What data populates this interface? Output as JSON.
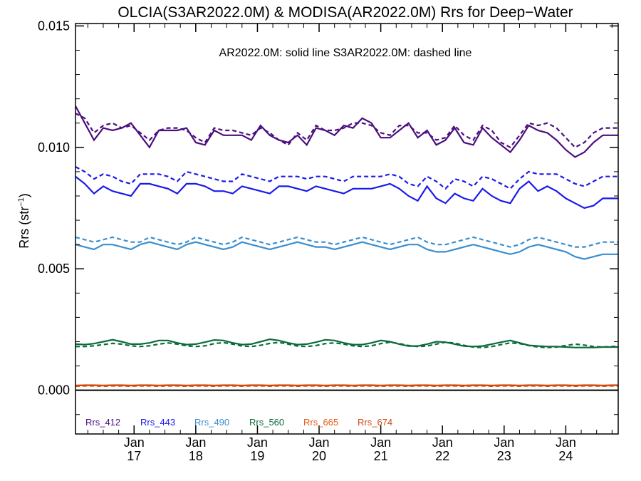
{
  "chart_data": {
    "type": "line",
    "title": "OLCIA(S3AR2022.0M) & MODISA(AR2022.0M)  Rrs for Deep−Water",
    "subtitle": "AR2022.0M: solid line   S3AR2022.0M: dashed line",
    "ylabel_main": "Rrs (str",
    "ylabel_sup": "−1",
    "ylabel_end": ")",
    "ylim": [
      -0.0018,
      0.0151
    ],
    "xlim": [
      2016.05,
      2024.85
    ],
    "yticks": [
      {
        "value": 0.0,
        "label": "0.000"
      },
      {
        "value": 0.005,
        "label": "0.005"
      },
      {
        "value": 0.01,
        "label": "0.010"
      },
      {
        "value": 0.015,
        "label": "0.015"
      }
    ],
    "xticks": [
      {
        "value": 2017.0,
        "month": "Jan",
        "year": "17"
      },
      {
        "value": 2018.0,
        "month": "Jan",
        "year": "18"
      },
      {
        "value": 2019.0,
        "month": "Jan",
        "year": "19"
      },
      {
        "value": 2020.0,
        "month": "Jan",
        "year": "20"
      },
      {
        "value": 2021.0,
        "month": "Jan",
        "year": "21"
      },
      {
        "value": 2022.0,
        "month": "Jan",
        "year": "22"
      },
      {
        "value": 2023.0,
        "month": "Jan",
        "year": "23"
      },
      {
        "value": 2024.0,
        "month": "Jan",
        "year": "24"
      }
    ],
    "zero_line": true,
    "grid": false,
    "legend_position": "bottom",
    "x": [
      2016.05,
      2016.2,
      2016.35,
      2016.5,
      2016.65,
      2016.8,
      2016.95,
      2017.1,
      2017.25,
      2017.4,
      2017.55,
      2017.7,
      2017.85,
      2018.0,
      2018.15,
      2018.3,
      2018.45,
      2018.6,
      2018.75,
      2018.9,
      2019.05,
      2019.2,
      2019.35,
      2019.5,
      2019.65,
      2019.8,
      2019.95,
      2020.1,
      2020.25,
      2020.4,
      2020.55,
      2020.7,
      2020.85,
      2021.0,
      2021.15,
      2021.3,
      2021.45,
      2021.6,
      2021.75,
      2021.9,
      2022.05,
      2022.2,
      2022.35,
      2022.5,
      2022.65,
      2022.8,
      2022.95,
      2023.1,
      2023.25,
      2023.4,
      2023.55,
      2023.7,
      2023.85,
      2024.0,
      2024.15,
      2024.3,
      2024.45,
      2024.6,
      2024.75,
      2024.85
    ],
    "series": [
      {
        "name": "Rrs_412",
        "color": "#4b0f7e",
        "solid": [
          0.0117,
          0.011,
          0.0103,
          0.0108,
          0.0107,
          0.0108,
          0.011,
          0.0105,
          0.01,
          0.0107,
          0.0107,
          0.0107,
          0.0108,
          0.0102,
          0.0101,
          0.0107,
          0.0105,
          0.0105,
          0.0105,
          0.0103,
          0.0109,
          0.0105,
          0.0103,
          0.0102,
          0.0105,
          0.0101,
          0.0108,
          0.0107,
          0.0105,
          0.0109,
          0.0108,
          0.0112,
          0.011,
          0.0104,
          0.0104,
          0.0107,
          0.011,
          0.0104,
          0.0107,
          0.0101,
          0.0103,
          0.0108,
          0.0102,
          0.0101,
          0.0108,
          0.0104,
          0.0101,
          0.0098,
          0.0103,
          0.0109,
          0.0107,
          0.0106,
          0.0103,
          0.0099,
          0.0096,
          0.0098,
          0.0102,
          0.0105,
          0.0105,
          0.0105
        ],
        "dashed": [
          0.0114,
          0.0112,
          0.0106,
          0.0109,
          0.011,
          0.0108,
          0.0109,
          0.0106,
          0.0103,
          0.0107,
          0.0108,
          0.0108,
          0.0107,
          0.0104,
          0.0102,
          0.0108,
          0.0107,
          0.0107,
          0.0106,
          0.0105,
          0.0108,
          0.0106,
          0.0103,
          0.0101,
          0.0106,
          0.0103,
          0.0109,
          0.0107,
          0.0107,
          0.0108,
          0.011,
          0.011,
          0.0109,
          0.0106,
          0.0105,
          0.0109,
          0.0109,
          0.0106,
          0.0106,
          0.0103,
          0.0104,
          0.0109,
          0.0105,
          0.0103,
          0.0109,
          0.0107,
          0.0102,
          0.01,
          0.0105,
          0.011,
          0.0109,
          0.011,
          0.0108,
          0.0104,
          0.01,
          0.0102,
          0.0106,
          0.0108,
          0.0108,
          0.0108
        ]
      },
      {
        "name": "Rrs_443",
        "color": "#1a1aeb",
        "solid": [
          0.0088,
          0.0085,
          0.0081,
          0.0084,
          0.0082,
          0.0081,
          0.008,
          0.0085,
          0.0085,
          0.0084,
          0.0083,
          0.0081,
          0.0085,
          0.0085,
          0.0084,
          0.0082,
          0.0082,
          0.0081,
          0.0084,
          0.0083,
          0.0082,
          0.0081,
          0.0084,
          0.0084,
          0.0083,
          0.0082,
          0.0084,
          0.0083,
          0.0082,
          0.0081,
          0.0083,
          0.0083,
          0.0083,
          0.0084,
          0.0085,
          0.0083,
          0.008,
          0.0078,
          0.0084,
          0.0079,
          0.0077,
          0.0081,
          0.0079,
          0.0078,
          0.0083,
          0.008,
          0.0078,
          0.0077,
          0.0083,
          0.0086,
          0.0082,
          0.0084,
          0.0082,
          0.0079,
          0.0077,
          0.0075,
          0.0076,
          0.0079,
          0.0079,
          0.0079
        ],
        "dashed": [
          0.0092,
          0.009,
          0.0087,
          0.0089,
          0.0088,
          0.0086,
          0.0085,
          0.0089,
          0.0089,
          0.0089,
          0.0088,
          0.0086,
          0.009,
          0.0089,
          0.0088,
          0.0087,
          0.0086,
          0.0086,
          0.0089,
          0.0088,
          0.0087,
          0.0086,
          0.0088,
          0.0088,
          0.0088,
          0.0087,
          0.0088,
          0.0088,
          0.0087,
          0.0086,
          0.0088,
          0.0088,
          0.0088,
          0.0088,
          0.0089,
          0.0088,
          0.0085,
          0.0084,
          0.0088,
          0.0086,
          0.0083,
          0.0087,
          0.0086,
          0.0084,
          0.0088,
          0.0087,
          0.0085,
          0.0083,
          0.0087,
          0.009,
          0.0089,
          0.0089,
          0.0089,
          0.0087,
          0.0085,
          0.0084,
          0.0086,
          0.0088,
          0.0088,
          0.0088
        ]
      },
      {
        "name": "Rrs_490",
        "color": "#3a8fcf",
        "solid": [
          0.006,
          0.0059,
          0.0058,
          0.006,
          0.006,
          0.0059,
          0.0058,
          0.006,
          0.0061,
          0.006,
          0.0059,
          0.0058,
          0.006,
          0.0061,
          0.006,
          0.0059,
          0.0058,
          0.0059,
          0.0061,
          0.006,
          0.0059,
          0.0058,
          0.0059,
          0.006,
          0.0061,
          0.006,
          0.0059,
          0.0059,
          0.0058,
          0.0059,
          0.006,
          0.0061,
          0.006,
          0.0059,
          0.0058,
          0.0059,
          0.006,
          0.006,
          0.0058,
          0.0057,
          0.0057,
          0.0058,
          0.0059,
          0.006,
          0.0059,
          0.0058,
          0.0057,
          0.0056,
          0.0057,
          0.0059,
          0.006,
          0.0059,
          0.0058,
          0.0057,
          0.0055,
          0.0054,
          0.0055,
          0.0056,
          0.0056,
          0.0056
        ],
        "dashed": [
          0.0063,
          0.0062,
          0.0061,
          0.0062,
          0.0063,
          0.0062,
          0.0061,
          0.0061,
          0.0063,
          0.0062,
          0.0061,
          0.006,
          0.0061,
          0.0063,
          0.0062,
          0.0061,
          0.006,
          0.0061,
          0.0063,
          0.0062,
          0.0061,
          0.006,
          0.0061,
          0.0062,
          0.0063,
          0.0062,
          0.0061,
          0.0061,
          0.006,
          0.0061,
          0.0062,
          0.0063,
          0.0062,
          0.0061,
          0.006,
          0.0061,
          0.0062,
          0.0063,
          0.0061,
          0.006,
          0.006,
          0.0061,
          0.0062,
          0.0063,
          0.0062,
          0.0061,
          0.006,
          0.0059,
          0.006,
          0.0062,
          0.0063,
          0.0062,
          0.0061,
          0.006,
          0.0059,
          0.0059,
          0.006,
          0.0061,
          0.0061,
          0.0061
        ]
      },
      {
        "name": "Rrs_560",
        "color": "#0b6b3a",
        "solid": [
          0.0019,
          0.00188,
          0.00192,
          0.002,
          0.00208,
          0.002,
          0.0019,
          0.0019,
          0.00195,
          0.00205,
          0.00205,
          0.00195,
          0.00188,
          0.0019,
          0.00198,
          0.00207,
          0.00205,
          0.00195,
          0.00188,
          0.0019,
          0.002,
          0.0021,
          0.00205,
          0.00195,
          0.00188,
          0.0019,
          0.00198,
          0.00208,
          0.00205,
          0.00195,
          0.00188,
          0.00188,
          0.00195,
          0.00205,
          0.002,
          0.0019,
          0.00182,
          0.00182,
          0.0019,
          0.002,
          0.00198,
          0.0019,
          0.00182,
          0.0018,
          0.00182,
          0.0019,
          0.00198,
          0.00205,
          0.00195,
          0.00185,
          0.00182,
          0.0018,
          0.0018,
          0.00178,
          0.00176,
          0.00176,
          0.00176,
          0.00178,
          0.00178,
          0.00178
        ],
        "dashed": [
          0.0018,
          0.0018,
          0.00183,
          0.00188,
          0.00193,
          0.0019,
          0.00183,
          0.0018,
          0.00183,
          0.0019,
          0.00195,
          0.0019,
          0.00183,
          0.0018,
          0.00183,
          0.00192,
          0.00196,
          0.0019,
          0.00182,
          0.0018,
          0.00185,
          0.00193,
          0.00197,
          0.0019,
          0.00182,
          0.0018,
          0.00184,
          0.00192,
          0.00195,
          0.0019,
          0.00183,
          0.0018,
          0.00183,
          0.00192,
          0.00198,
          0.00192,
          0.00184,
          0.0018,
          0.00182,
          0.0019,
          0.00198,
          0.00194,
          0.00185,
          0.00178,
          0.00176,
          0.0018,
          0.00188,
          0.00195,
          0.00192,
          0.00184,
          0.00178,
          0.00176,
          0.00178,
          0.00184,
          0.0019,
          0.00186,
          0.0018,
          0.00178,
          0.0018,
          0.00182
        ]
      },
      {
        "name": "Rrs_665",
        "color": "#e85a16",
        "solid": [
          0.0002,
          0.00021,
          0.00021,
          0.0002,
          0.00021,
          0.00021,
          0.0002,
          0.00021,
          0.00021,
          0.0002,
          0.00021,
          0.00021,
          0.0002,
          0.00021,
          0.00021,
          0.0002,
          0.00021,
          0.00021,
          0.0002,
          0.00021,
          0.00021,
          0.0002,
          0.00021,
          0.00021,
          0.0002,
          0.00021,
          0.00021,
          0.0002,
          0.00021,
          0.00021,
          0.0002,
          0.00021,
          0.00021,
          0.0002,
          0.00021,
          0.00021,
          0.0002,
          0.00021,
          0.00021,
          0.0002,
          0.00021,
          0.00021,
          0.0002,
          0.00021,
          0.00021,
          0.0002,
          0.00021,
          0.00021,
          0.0002,
          0.00021,
          0.00021,
          0.0002,
          0.00021,
          0.00021,
          0.0002,
          0.00021,
          0.00021,
          0.0002,
          0.00021,
          0.00021
        ],
        "dashed": [
          0.00018,
          0.00019,
          0.00019,
          0.00018,
          0.00019,
          0.00019,
          0.00018,
          0.00019,
          0.00019,
          0.00018,
          0.00019,
          0.00019,
          0.00018,
          0.00019,
          0.00019,
          0.00018,
          0.00019,
          0.00019,
          0.00018,
          0.00019,
          0.00019,
          0.00018,
          0.00019,
          0.00019,
          0.00018,
          0.00019,
          0.00019,
          0.00018,
          0.00019,
          0.00019,
          0.00018,
          0.00019,
          0.00019,
          0.00018,
          0.00019,
          0.00019,
          0.00018,
          0.00019,
          0.00019,
          0.00018,
          0.00019,
          0.00019,
          0.00018,
          0.00019,
          0.00019,
          0.00018,
          0.00019,
          0.00019,
          0.00018,
          0.00019,
          0.00019,
          0.00018,
          0.00019,
          0.00019,
          0.00018,
          0.00019,
          0.00019,
          0.00018,
          0.00019,
          0.00019
        ]
      },
      {
        "name": "Rrs_674",
        "color": "#cf4d12",
        "solid": [
          0.00019,
          0.0002,
          0.0002,
          0.00019,
          0.0002,
          0.0002,
          0.00019,
          0.0002,
          0.0002,
          0.00019,
          0.0002,
          0.0002,
          0.00019,
          0.0002,
          0.0002,
          0.00019,
          0.0002,
          0.0002,
          0.00019,
          0.0002,
          0.0002,
          0.00019,
          0.0002,
          0.0002,
          0.00019,
          0.0002,
          0.0002,
          0.00019,
          0.0002,
          0.0002,
          0.00019,
          0.0002,
          0.0002,
          0.00019,
          0.0002,
          0.0002,
          0.00019,
          0.0002,
          0.0002,
          0.00019,
          0.0002,
          0.0002,
          0.00019,
          0.0002,
          0.0002,
          0.00019,
          0.0002,
          0.0002,
          0.00019,
          0.0002,
          0.0002,
          0.00019,
          0.0002,
          0.0002,
          0.00019,
          0.0002,
          0.0002,
          0.00019,
          0.0002,
          0.0002
        ],
        "dashed": [
          0.00017,
          0.00018,
          0.00018,
          0.00017,
          0.00018,
          0.00018,
          0.00017,
          0.00018,
          0.00018,
          0.00017,
          0.00018,
          0.00018,
          0.00017,
          0.00018,
          0.00018,
          0.00017,
          0.00018,
          0.00018,
          0.00017,
          0.00018,
          0.00018,
          0.00017,
          0.00018,
          0.00018,
          0.00017,
          0.00018,
          0.00018,
          0.00017,
          0.00018,
          0.00018,
          0.00017,
          0.00018,
          0.00018,
          0.00017,
          0.00018,
          0.00018,
          0.00017,
          0.00018,
          0.00018,
          0.00017,
          0.00018,
          0.00018,
          0.00017,
          0.00018,
          0.00018,
          0.00017,
          0.00018,
          0.00018,
          0.00017,
          0.00018,
          0.00018,
          0.00017,
          0.00018,
          0.00018,
          0.00017,
          0.00018,
          0.00018,
          0.00017,
          0.00018,
          0.00018
        ]
      }
    ]
  }
}
